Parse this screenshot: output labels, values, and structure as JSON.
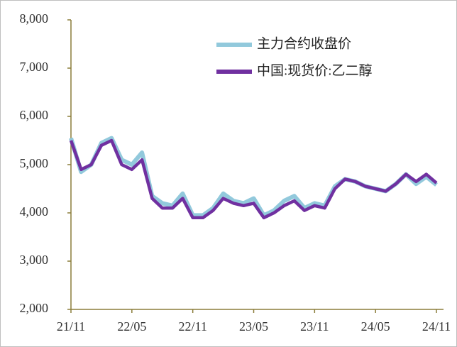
{
  "chart_data": {
    "type": "line",
    "categories": [
      "21/11",
      null,
      null,
      null,
      null,
      null,
      "22/05",
      null,
      null,
      null,
      null,
      null,
      "22/11",
      null,
      null,
      null,
      null,
      null,
      "23/05",
      null,
      null,
      null,
      null,
      null,
      "23/11",
      null,
      null,
      null,
      null,
      null,
      "24/05",
      null,
      null,
      null,
      null,
      null,
      "24/11"
    ],
    "series": [
      {
        "name": "主力合约收盘价",
        "color": "#92c9dc",
        "values": [
          5550,
          4850,
          5000,
          5450,
          5550,
          5100,
          5000,
          5250,
          4350,
          4200,
          4150,
          4400,
          3950,
          3950,
          4100,
          4400,
          4250,
          4200,
          4300,
          3950,
          4050,
          4250,
          4350,
          4100,
          4200,
          4150,
          4550,
          4700,
          4650,
          4550,
          4500,
          4450,
          4600,
          4800,
          4600,
          4750,
          4580
        ]
      },
      {
        "name": "中国:现货价:乙二醇",
        "color": "#7030a0",
        "values": [
          5500,
          4900,
          5000,
          5400,
          5500,
          5000,
          4900,
          5100,
          4300,
          4100,
          4100,
          4300,
          3900,
          3900,
          4050,
          4300,
          4200,
          4150,
          4200,
          3900,
          4000,
          4150,
          4250,
          4050,
          4150,
          4100,
          4500,
          4700,
          4650,
          4550,
          4500,
          4450,
          4600,
          4800,
          4650,
          4800,
          4620
        ]
      }
    ],
    "ylim": [
      2000,
      8000
    ],
    "yticks": [
      {
        "value": 2000,
        "label": "2,000"
      },
      {
        "value": 3000,
        "label": "3,000"
      },
      {
        "value": 4000,
        "label": "4,000"
      },
      {
        "value": 5000,
        "label": "5,000"
      },
      {
        "value": 6000,
        "label": "6,000"
      },
      {
        "value": 7000,
        "label": "7,000"
      },
      {
        "value": 8000,
        "label": "8,000"
      }
    ],
    "legend": "upper right"
  }
}
